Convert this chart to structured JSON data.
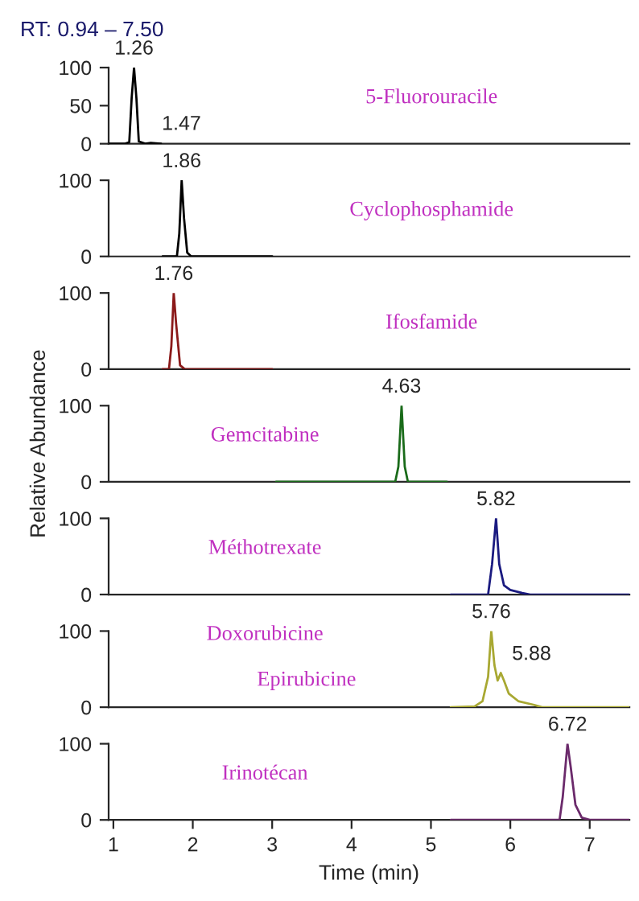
{
  "chart_data": [
    {
      "type": "line",
      "title": "RT: 0.94 – 7.50",
      "xlim": [
        0.94,
        7.5
      ],
      "ylim": [
        0,
        100
      ],
      "yticks": [
        0,
        50,
        100
      ],
      "tick_labels": "y",
      "grid": false,
      "x": [
        0.94,
        1.15,
        1.2,
        1.23,
        1.26,
        1.29,
        1.32,
        1.4,
        1.47,
        1.6
      ],
      "series": [
        {
          "color": "#000000",
          "values": [
            0,
            0,
            2,
            60,
            100,
            60,
            3,
            0,
            1,
            0
          ]
        }
      ],
      "annotations": [
        "5-Fluorouracile",
        {
          "text": "1.26",
          "x": 1.26,
          "y": 100
        },
        {
          "text": "1.47",
          "x": 1.47,
          "y": 1
        }
      ]
    },
    {
      "type": "line",
      "xlim": [
        0.94,
        7.5
      ],
      "ylim": [
        0,
        100
      ],
      "yticks": [
        0,
        100
      ],
      "tick_labels": "y",
      "grid": false,
      "x": [
        1.62,
        1.8,
        1.83,
        1.86,
        1.89,
        1.93,
        1.98,
        3.0
      ],
      "series": [
        {
          "color": "#000000",
          "values": [
            0,
            0,
            30,
            100,
            50,
            5,
            0,
            0
          ]
        }
      ],
      "annotations": [
        "Cyclophosphamide",
        {
          "text": "1.86",
          "x": 1.86,
          "y": 100
        }
      ]
    },
    {
      "type": "line",
      "xlim": [
        0.94,
        7.5
      ],
      "ylim": [
        0,
        100
      ],
      "yticks": [
        0,
        100
      ],
      "tick_labels": "y",
      "grid": false,
      "x": [
        1.62,
        1.7,
        1.73,
        1.76,
        1.79,
        1.84,
        1.9,
        3.0
      ],
      "series": [
        {
          "color": "#8b1a1a",
          "values": [
            0,
            0,
            30,
            100,
            60,
            5,
            0,
            0
          ]
        }
      ],
      "annotations": [
        "Ifosfamide",
        {
          "text": "1.76",
          "x": 1.76,
          "y": 100
        }
      ]
    },
    {
      "type": "line",
      "xlim": [
        0.94,
        7.5
      ],
      "ylim": [
        0,
        100
      ],
      "yticks": [
        0,
        100
      ],
      "tick_labels": "y",
      "grid": false,
      "ylabel": "Relative Abundance",
      "x": [
        3.05,
        4.55,
        4.59,
        4.63,
        4.67,
        4.71,
        5.2
      ],
      "series": [
        {
          "color": "#1a6b1a",
          "values": [
            0,
            0,
            20,
            100,
            20,
            0,
            0
          ]
        }
      ],
      "annotations": [
        "Gemcitabine",
        {
          "text": "4.63",
          "x": 4.63,
          "y": 100
        }
      ]
    },
    {
      "type": "line",
      "xlim": [
        0.94,
        7.5
      ],
      "ylim": [
        0,
        100
      ],
      "yticks": [
        0,
        100
      ],
      "tick_labels": "y",
      "grid": false,
      "x": [
        5.25,
        5.72,
        5.77,
        5.82,
        5.86,
        5.92,
        6.0,
        6.15,
        6.25,
        7.5
      ],
      "series": [
        {
          "color": "#1a1a80",
          "values": [
            0,
            0,
            40,
            100,
            40,
            12,
            6,
            2,
            0,
            0
          ]
        }
      ],
      "annotations": [
        "Méthotrexate",
        {
          "text": "5.82",
          "x": 5.82,
          "y": 100
        }
      ]
    },
    {
      "type": "line",
      "xlim": [
        0.94,
        7.5
      ],
      "ylim": [
        0,
        100
      ],
      "yticks": [
        0,
        100
      ],
      "tick_labels": "y",
      "grid": false,
      "x": [
        5.25,
        5.55,
        5.65,
        5.72,
        5.76,
        5.8,
        5.84,
        5.88,
        5.92,
        5.98,
        6.1,
        6.3,
        6.4,
        7.5
      ],
      "series": [
        {
          "color": "#a8a832",
          "values": [
            0,
            1,
            8,
            40,
            100,
            55,
            35,
            45,
            35,
            18,
            8,
            3,
            0,
            0
          ]
        }
      ],
      "annotations": [
        "Doxorubicine",
        "Epirubicine",
        {
          "text": "5.76",
          "x": 5.76,
          "y": 100
        },
        {
          "text": "5.88",
          "x": 5.88,
          "y": 45
        }
      ]
    },
    {
      "type": "line",
      "xlim": [
        0.94,
        7.5
      ],
      "ylim": [
        0,
        100
      ],
      "yticks": [
        0,
        100
      ],
      "xticks": [
        1,
        2,
        3,
        4,
        5,
        6,
        7
      ],
      "grid": false,
      "xlabel": "Time (min)",
      "x": [
        5.25,
        6.62,
        6.66,
        6.72,
        6.76,
        6.82,
        6.9,
        7.0,
        7.5
      ],
      "series": [
        {
          "color": "#6b2a6b",
          "values": [
            0,
            0,
            30,
            100,
            70,
            20,
            3,
            0,
            0
          ]
        }
      ],
      "annotations": [
        "Irinotécan",
        {
          "text": "6.72",
          "x": 6.72,
          "y": 100
        }
      ]
    }
  ]
}
